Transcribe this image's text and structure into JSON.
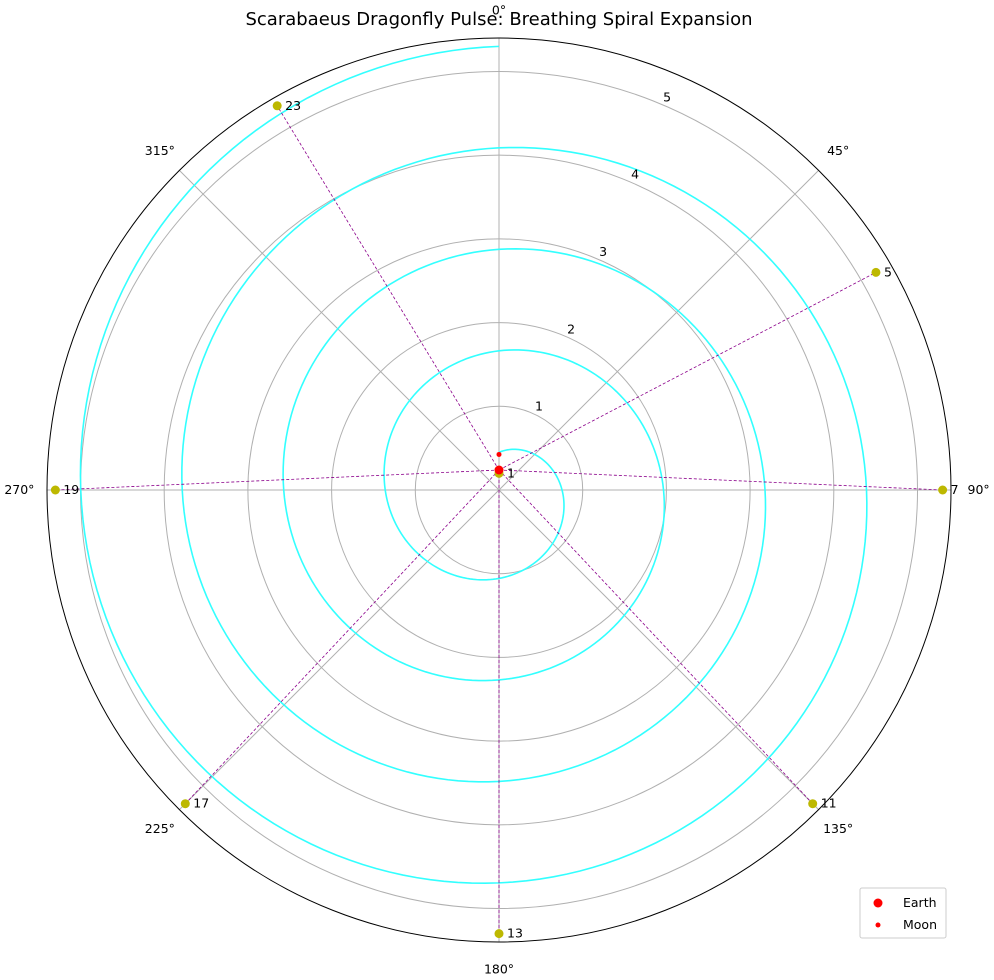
{
  "chart_data": {
    "type": "polar",
    "title": "Scarabaeus Dragonfly Pulse: Breathing Spiral Expansion",
    "theta_direction": "clockwise",
    "theta_zero": "top",
    "angle_ticks": [
      "0°",
      "45°",
      "90°",
      "135°",
      "180°",
      "225°",
      "270°",
      "315°"
    ],
    "radial_ticks": [
      1,
      2,
      3,
      4,
      5
    ],
    "rlim": [
      0,
      5.4
    ],
    "grid": true,
    "spiral": {
      "color": "#33ffff",
      "turns": 4,
      "r_start": 0.45,
      "r_end": 5.3
    },
    "points": [
      {
        "label": "1",
        "theta_deg": 0,
        "r": 0.2
      },
      {
        "label": "5",
        "theta_deg": 60,
        "r": 5.2
      },
      {
        "label": "7",
        "theta_deg": 90,
        "r": 5.3
      },
      {
        "label": "11",
        "theta_deg": 135,
        "r": 5.3
      },
      {
        "label": "13",
        "theta_deg": 180,
        "r": 5.3
      },
      {
        "label": "17",
        "theta_deg": 225,
        "r": 5.3
      },
      {
        "label": "19",
        "theta_deg": 270,
        "r": 5.3
      },
      {
        "label": "23",
        "theta_deg": 330,
        "r": 5.3
      }
    ],
    "connector_color": "#8b008b",
    "point_color": "#bdb800",
    "earth": {
      "theta_deg": 0,
      "r": 0,
      "color": "#ff0000"
    },
    "moon": {
      "theta_deg": 0,
      "r": 0.15,
      "color": "#ff0000"
    },
    "legend": {
      "position": "lower-right",
      "entries": [
        "Earth",
        "Moon"
      ]
    }
  }
}
